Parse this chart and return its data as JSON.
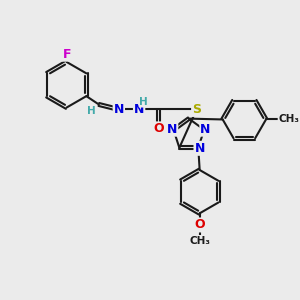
{
  "background_color": "#ebebeb",
  "bond_color": "#1a1a1a",
  "bond_lw": 1.5,
  "dbo": 0.06,
  "atom_colors": {
    "F": "#cc00cc",
    "N": "#0000dd",
    "O": "#dd0000",
    "S": "#aaaa00",
    "H": "#44aaaa",
    "C": "#1a1a1a"
  },
  "fs": 9,
  "fs_small": 7.5
}
